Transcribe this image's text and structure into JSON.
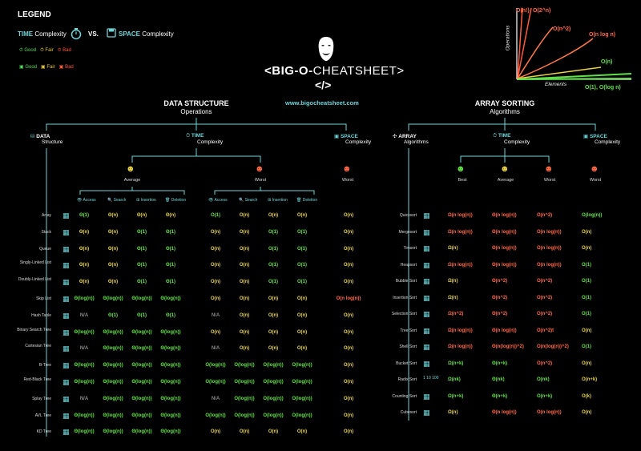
{
  "legend": {
    "title": "LEGEND",
    "time": "TIME",
    "time_sub": "Complexity",
    "vs": "VS.",
    "space": "SPACE",
    "space_sub": "Complexity",
    "good": "Good",
    "fair": "Fair",
    "bad": "Bad"
  },
  "header": {
    "title_pre": "<BIG-O-",
    "title_post": "CHEATSHEET>",
    "slash": "</>",
    "url": "www.bigocheatsheet.com"
  },
  "ds": {
    "title": "DATA STRUCTURE",
    "subtitle": "Operations",
    "data": "DATA",
    "data_sub": "Structure",
    "time": "TIME",
    "time_sub": "Complexity",
    "space": "SPACE",
    "space_sub": "Complexity",
    "average": "Average",
    "worst": "Worst",
    "space_worst": "Worst",
    "cols": [
      "Access",
      "Search",
      "Insertion",
      "Deletion"
    ],
    "rows": [
      {
        "name": "Array",
        "avg": [
          [
            "Θ(1)",
            "g"
          ],
          [
            "Θ(n)",
            "y"
          ],
          [
            "Θ(n)",
            "y"
          ],
          [
            "Θ(n)",
            "y"
          ]
        ],
        "worst": [
          [
            "O(1)",
            "g"
          ],
          [
            "O(n)",
            "y"
          ],
          [
            "O(n)",
            "y"
          ],
          [
            "O(n)",
            "y"
          ]
        ],
        "space": [
          "O(n)",
          "y"
        ]
      },
      {
        "name": "Stack",
        "avg": [
          [
            "Θ(n)",
            "y"
          ],
          [
            "Θ(n)",
            "y"
          ],
          [
            "Θ(1)",
            "g"
          ],
          [
            "Θ(1)",
            "g"
          ]
        ],
        "worst": [
          [
            "O(n)",
            "y"
          ],
          [
            "O(n)",
            "y"
          ],
          [
            "O(1)",
            "g"
          ],
          [
            "O(1)",
            "g"
          ]
        ],
        "space": [
          "O(n)",
          "y"
        ]
      },
      {
        "name": "Queue",
        "avg": [
          [
            "Θ(n)",
            "y"
          ],
          [
            "Θ(n)",
            "y"
          ],
          [
            "Θ(1)",
            "g"
          ],
          [
            "Θ(1)",
            "g"
          ]
        ],
        "worst": [
          [
            "O(n)",
            "y"
          ],
          [
            "O(n)",
            "y"
          ],
          [
            "O(1)",
            "g"
          ],
          [
            "O(1)",
            "g"
          ]
        ],
        "space": [
          "O(n)",
          "y"
        ]
      },
      {
        "name": "Singly-Linked List",
        "avg": [
          [
            "Θ(n)",
            "y"
          ],
          [
            "Θ(n)",
            "y"
          ],
          [
            "Θ(1)",
            "g"
          ],
          [
            "Θ(1)",
            "g"
          ]
        ],
        "worst": [
          [
            "O(n)",
            "y"
          ],
          [
            "O(n)",
            "y"
          ],
          [
            "O(1)",
            "g"
          ],
          [
            "O(1)",
            "g"
          ]
        ],
        "space": [
          "O(n)",
          "y"
        ]
      },
      {
        "name": "Doubly-Linked List",
        "avg": [
          [
            "Θ(n)",
            "y"
          ],
          [
            "Θ(n)",
            "y"
          ],
          [
            "Θ(1)",
            "g"
          ],
          [
            "Θ(1)",
            "g"
          ]
        ],
        "worst": [
          [
            "O(n)",
            "y"
          ],
          [
            "O(n)",
            "y"
          ],
          [
            "O(1)",
            "g"
          ],
          [
            "O(1)",
            "g"
          ]
        ],
        "space": [
          "O(n)",
          "y"
        ]
      },
      {
        "name": "Skip List",
        "avg": [
          [
            "Θ(log(n))",
            "g"
          ],
          [
            "Θ(log(n))",
            "g"
          ],
          [
            "Θ(log(n))",
            "g"
          ],
          [
            "Θ(log(n))",
            "g"
          ]
        ],
        "worst": [
          [
            "O(n)",
            "y"
          ],
          [
            "O(n)",
            "y"
          ],
          [
            "O(n)",
            "y"
          ],
          [
            "O(n)",
            "y"
          ]
        ],
        "space": [
          "O(n log(n))",
          "r"
        ]
      },
      {
        "name": "Hash Table",
        "avg": [
          [
            "N/A",
            "gr"
          ],
          [
            "Θ(1)",
            "g"
          ],
          [
            "Θ(1)",
            "g"
          ],
          [
            "Θ(1)",
            "g"
          ]
        ],
        "worst": [
          [
            "N/A",
            "gr"
          ],
          [
            "O(n)",
            "y"
          ],
          [
            "O(n)",
            "y"
          ],
          [
            "O(n)",
            "y"
          ]
        ],
        "space": [
          "O(n)",
          "y"
        ]
      },
      {
        "name": "Binary Search Tree",
        "avg": [
          [
            "Θ(log(n))",
            "g"
          ],
          [
            "Θ(log(n))",
            "g"
          ],
          [
            "Θ(log(n))",
            "g"
          ],
          [
            "Θ(log(n))",
            "g"
          ]
        ],
        "worst": [
          [
            "O(n)",
            "y"
          ],
          [
            "O(n)",
            "y"
          ],
          [
            "O(n)",
            "y"
          ],
          [
            "O(n)",
            "y"
          ]
        ],
        "space": [
          "O(n)",
          "y"
        ]
      },
      {
        "name": "Cartesian Tree",
        "avg": [
          [
            "N/A",
            "gr"
          ],
          [
            "Θ(log(n))",
            "g"
          ],
          [
            "Θ(log(n))",
            "g"
          ],
          [
            "Θ(log(n))",
            "g"
          ]
        ],
        "worst": [
          [
            "N/A",
            "gr"
          ],
          [
            "O(n)",
            "y"
          ],
          [
            "O(n)",
            "y"
          ],
          [
            "O(n)",
            "y"
          ]
        ],
        "space": [
          "O(n)",
          "y"
        ]
      },
      {
        "name": "B-Tree",
        "avg": [
          [
            "Θ(log(n))",
            "g"
          ],
          [
            "Θ(log(n))",
            "g"
          ],
          [
            "Θ(log(n))",
            "g"
          ],
          [
            "Θ(log(n))",
            "g"
          ]
        ],
        "worst": [
          [
            "O(log(n))",
            "g"
          ],
          [
            "O(log(n))",
            "g"
          ],
          [
            "O(log(n))",
            "g"
          ],
          [
            "O(log(n))",
            "g"
          ]
        ],
        "space": [
          "O(n)",
          "y"
        ]
      },
      {
        "name": "Red-Black Tree",
        "avg": [
          [
            "Θ(log(n))",
            "g"
          ],
          [
            "Θ(log(n))",
            "g"
          ],
          [
            "Θ(log(n))",
            "g"
          ],
          [
            "Θ(log(n))",
            "g"
          ]
        ],
        "worst": [
          [
            "O(log(n))",
            "g"
          ],
          [
            "O(log(n))",
            "g"
          ],
          [
            "O(log(n))",
            "g"
          ],
          [
            "O(log(n))",
            "g"
          ]
        ],
        "space": [
          "O(n)",
          "y"
        ]
      },
      {
        "name": "Splay Tree",
        "avg": [
          [
            "N/A",
            "gr"
          ],
          [
            "Θ(log(n))",
            "g"
          ],
          [
            "Θ(log(n))",
            "g"
          ],
          [
            "Θ(log(n))",
            "g"
          ]
        ],
        "worst": [
          [
            "N/A",
            "gr"
          ],
          [
            "O(log(n))",
            "g"
          ],
          [
            "O(log(n))",
            "g"
          ],
          [
            "O(log(n))",
            "g"
          ]
        ],
        "space": [
          "O(n)",
          "y"
        ]
      },
      {
        "name": "AVL Tree",
        "avg": [
          [
            "Θ(log(n))",
            "g"
          ],
          [
            "Θ(log(n))",
            "g"
          ],
          [
            "Θ(log(n))",
            "g"
          ],
          [
            "Θ(log(n))",
            "g"
          ]
        ],
        "worst": [
          [
            "O(log(n))",
            "g"
          ],
          [
            "O(log(n))",
            "g"
          ],
          [
            "O(log(n))",
            "g"
          ],
          [
            "O(log(n))",
            "g"
          ]
        ],
        "space": [
          "O(n)",
          "y"
        ]
      },
      {
        "name": "KD Tree",
        "avg": [
          [
            "Θ(log(n))",
            "g"
          ],
          [
            "Θ(log(n))",
            "g"
          ],
          [
            "Θ(log(n))",
            "g"
          ],
          [
            "Θ(log(n))",
            "g"
          ]
        ],
        "worst": [
          [
            "O(n)",
            "y"
          ],
          [
            "O(n)",
            "y"
          ],
          [
            "O(n)",
            "y"
          ],
          [
            "O(n)",
            "y"
          ]
        ],
        "space": [
          "O(n)",
          "y"
        ]
      }
    ]
  },
  "as": {
    "title": "ARRAY SORTING",
    "subtitle": "Algorithms",
    "array": "ARRAY",
    "array_sub": "Algorithms",
    "time": "TIME",
    "time_sub": "Complexity",
    "space": "SPACE",
    "space_sub": "Complexity",
    "best": "Best",
    "average": "Average",
    "worst": "Worst",
    "space_worst": "Worst",
    "rows": [
      {
        "name": "Quicksort",
        "c": [
          [
            "Ω(n log(n))",
            "r"
          ],
          [
            "Θ(n log(n))",
            "r"
          ],
          [
            "O(n^2)",
            "r"
          ],
          [
            "O(log(n))",
            "g"
          ]
        ]
      },
      {
        "name": "Mergesort",
        "c": [
          [
            "Ω(n log(n))",
            "r"
          ],
          [
            "Θ(n log(n))",
            "r"
          ],
          [
            "O(n log(n))",
            "r"
          ],
          [
            "O(n)",
            "y"
          ]
        ]
      },
      {
        "name": "Timsort",
        "c": [
          [
            "Ω(n)",
            "y"
          ],
          [
            "Θ(n log(n))",
            "r"
          ],
          [
            "O(n log(n))",
            "r"
          ],
          [
            "O(n)",
            "y"
          ]
        ]
      },
      {
        "name": "Heapsort",
        "c": [
          [
            "Ω(n log(n))",
            "r"
          ],
          [
            "Θ(n log(n))",
            "r"
          ],
          [
            "O(n log(n))",
            "r"
          ],
          [
            "O(1)",
            "g"
          ]
        ]
      },
      {
        "name": "Bubble Sort",
        "c": [
          [
            "Ω(n)",
            "y"
          ],
          [
            "Θ(n^2)",
            "r"
          ],
          [
            "O(n^2)",
            "r"
          ],
          [
            "O(1)",
            "g"
          ]
        ]
      },
      {
        "name": "Insertion Sort",
        "c": [
          [
            "Ω(n)",
            "y"
          ],
          [
            "Θ(n^2)",
            "r"
          ],
          [
            "O(n^2)",
            "r"
          ],
          [
            "O(1)",
            "g"
          ]
        ]
      },
      {
        "name": "Selection Sort",
        "c": [
          [
            "Ω(n^2)",
            "r"
          ],
          [
            "Θ(n^2)",
            "r"
          ],
          [
            "O(n^2)",
            "r"
          ],
          [
            "O(1)",
            "g"
          ]
        ]
      },
      {
        "name": "Tree Sort",
        "c": [
          [
            "Ω(n log(n))",
            "r"
          ],
          [
            "Θ(n log(n))",
            "r"
          ],
          [
            "O(n^2)t",
            "r"
          ],
          [
            "O(n)",
            "y"
          ]
        ]
      },
      {
        "name": "Shell Sort",
        "c": [
          [
            "Ω(n log(n))",
            "r"
          ],
          [
            "Θ(n(log(n))^2)",
            "r"
          ],
          [
            "O(n(log(n))^2)",
            "r"
          ],
          [
            "O(1)",
            "g"
          ]
        ]
      },
      {
        "name": "Bucket Sort",
        "c": [
          [
            "Ω(n+k)",
            "g"
          ],
          [
            "Θ(n+k)",
            "g"
          ],
          [
            "O(n^2)",
            "r"
          ],
          [
            "O(n)",
            "y"
          ]
        ]
      },
      {
        "name": "Radix Sort",
        "c": [
          [
            "Ω(nk)",
            "g"
          ],
          [
            "Θ(nk)",
            "g"
          ],
          [
            "O(nk)",
            "g"
          ],
          [
            "O(n+k)",
            "y"
          ]
        ]
      },
      {
        "name": "Counting Sort",
        "c": [
          [
            "Ω(n+k)",
            "g"
          ],
          [
            "Θ(n+k)",
            "g"
          ],
          [
            "O(n+k)",
            "g"
          ],
          [
            "O(k)",
            "y"
          ]
        ]
      },
      {
        "name": "Cubesort",
        "c": [
          [
            "Ω(n)",
            "y"
          ],
          [
            "Θ(n log(n))",
            "r"
          ],
          [
            "O(n log(n))",
            "r"
          ],
          [
            "O(n)",
            "y"
          ]
        ]
      }
    ],
    "radix_icon_text": "1 10 100"
  },
  "chart": {
    "ylabel": "Operations",
    "xlabel": "Elements",
    "curves": [
      {
        "label": "O(n!)",
        "color": "#ff5a3c"
      },
      {
        "label": "O(2^n)",
        "color": "#ff5a3c"
      },
      {
        "label": "O(n^2)",
        "color": "#ff7a4c"
      },
      {
        "label": "O(n log n)",
        "color": "#ff7a4c"
      },
      {
        "label": "O(n)",
        "color": "#e7d04a"
      },
      {
        "label": "O(1), O(log n)",
        "color": "#5fe04a"
      }
    ]
  },
  "colors": {
    "good": "#66e04a",
    "fair": "#e8d24a",
    "bad": "#ff6a48",
    "teal": "#6fd5d9"
  }
}
